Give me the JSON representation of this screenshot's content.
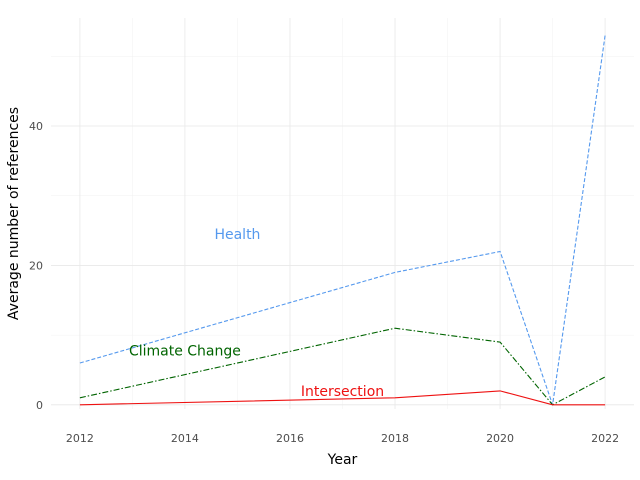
{
  "chart_data": {
    "type": "line",
    "title": "",
    "xlabel": "Year",
    "ylabel": "Average number of references",
    "x": [
      2012,
      2018,
      2020,
      2021,
      2022
    ],
    "xlim": [
      2011.45,
      2022.55
    ],
    "ylim": [
      -0.6,
      55.5
    ],
    "xticks": [
      2012,
      2014,
      2016,
      2018,
      2020,
      2022
    ],
    "yticks": [
      0,
      20,
      40
    ],
    "grid": true,
    "legend": "none",
    "series": [
      {
        "name": "Health",
        "values": [
          6,
          19,
          22,
          0,
          53
        ],
        "color": "#5599ee",
        "dash": "dashed",
        "label_position": {
          "x": 2015.0,
          "y": 24.5
        }
      },
      {
        "name": "Climate Change",
        "values": [
          1,
          11,
          9,
          0,
          4
        ],
        "color": "#006400",
        "dash": "dashdot",
        "label_position": {
          "x": 2014.0,
          "y": 7.8
        }
      },
      {
        "name": "Intersection",
        "values": [
          0,
          1,
          2,
          0,
          0
        ],
        "color": "#ee1111",
        "dash": "solid",
        "label_position": {
          "x": 2017.0,
          "y": 2.0
        }
      }
    ]
  }
}
